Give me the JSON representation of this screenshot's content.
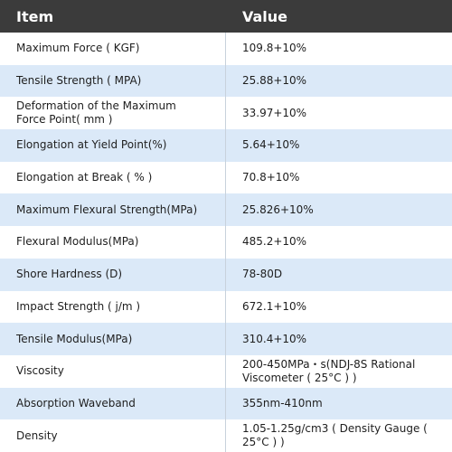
{
  "table": {
    "header": [
      "Item",
      "Value"
    ],
    "rows": [
      [
        "Maximum Force ( KGF)",
        "109.8+10%"
      ],
      [
        "Tensile Strength ( MPA)",
        "25.88+10%"
      ],
      [
        "Deformation of the Maximum\nForce Point( mm )",
        "33.97+10%"
      ],
      [
        "Elongation at Yield Point(%)",
        "5.64+10%"
      ],
      [
        "Elongation at Break ( % )",
        "70.8+10%"
      ],
      [
        "Maximum Flexural Strength(MPa)",
        "25.826+10%"
      ],
      [
        "Flexural Modulus(MPa)",
        "485.2+10%"
      ],
      [
        "Shore Hardness (D)",
        "78-80D"
      ],
      [
        "Impact Strength ( j/m )",
        "672.1+10%"
      ],
      [
        "Tensile Modulus(MPa)",
        "310.4+10%"
      ],
      [
        "Viscosity",
        "200-450MPa・s(NDJ-8S Rational\nViscometer ( 25°C ) )"
      ],
      [
        "Absorption Waveband",
        "355nm-410nm"
      ],
      [
        "Density",
        "1.05-1.25g/cm3 ( Density Gauge ( 25°C ) )"
      ]
    ]
  }
}
